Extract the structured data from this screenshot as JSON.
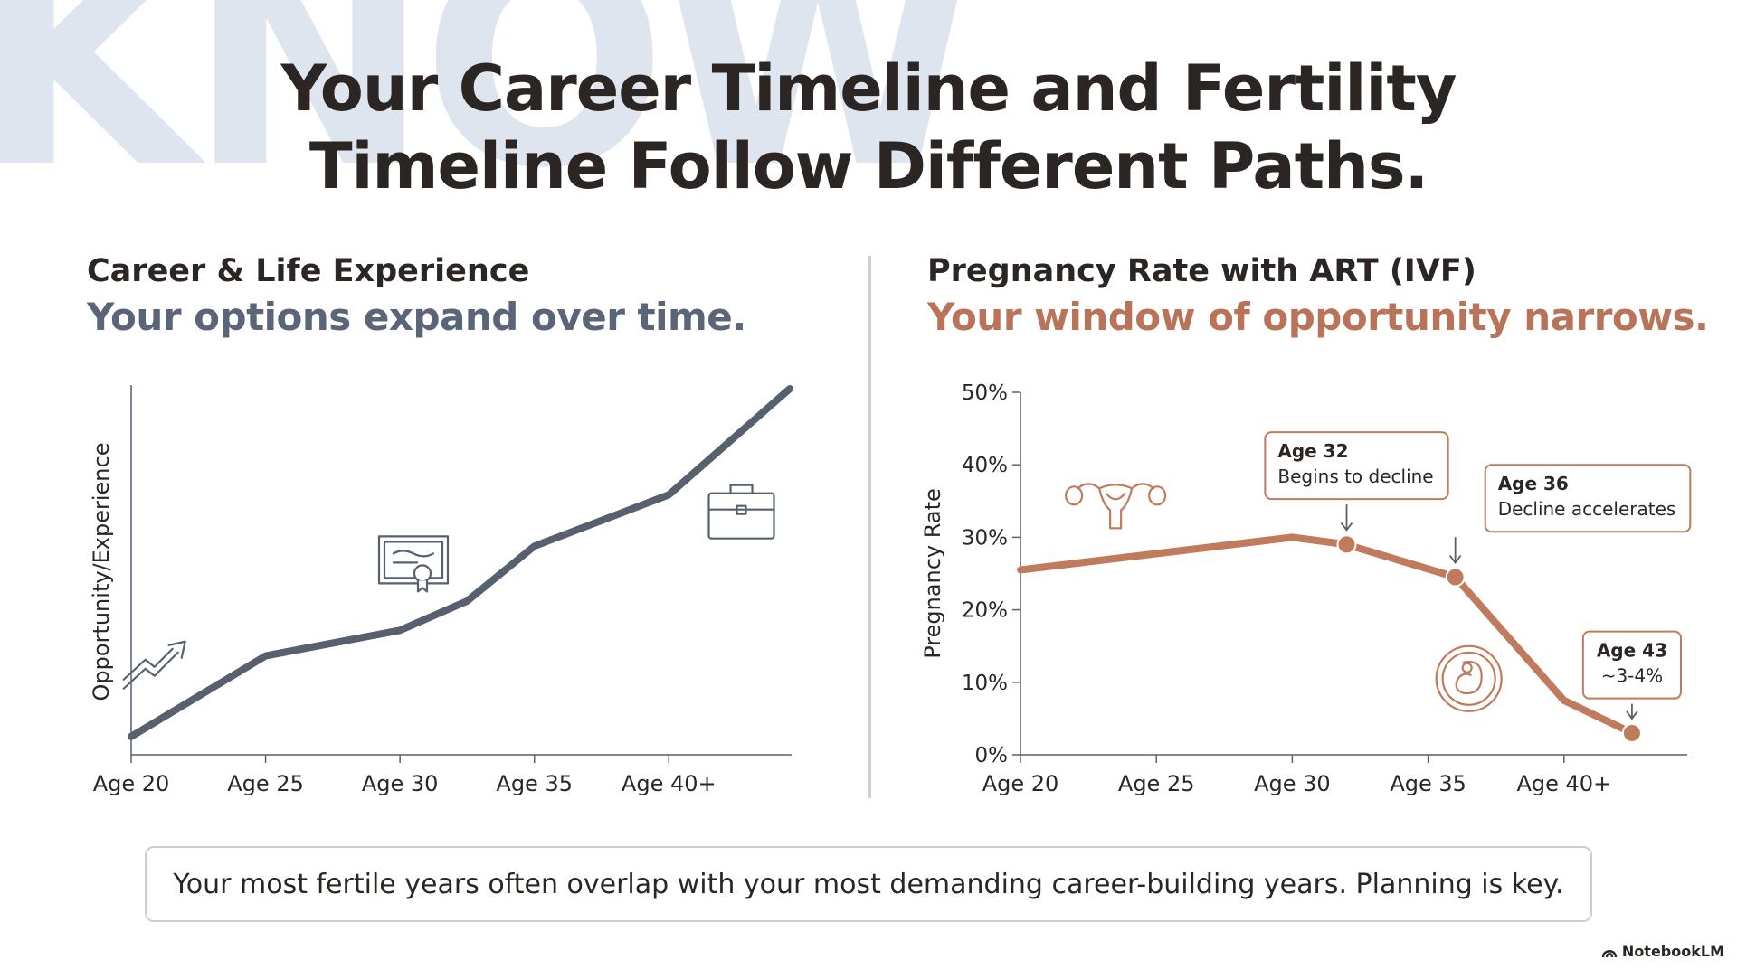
{
  "watermark": "KNOW",
  "title": {
    "line1": "Your Career Timeline and Fertility",
    "line2": "Timeline Follow Different Paths."
  },
  "left_panel": {
    "title": "Career & Life Experience",
    "subtitle": "Your options expand over time.",
    "subtitle_color": "#5b6579"
  },
  "right_panel": {
    "title": "Pregnancy Rate with ART (IVF)",
    "subtitle": "Your window of opportunity narrows.",
    "subtitle_color": "#b97358"
  },
  "footer": {
    "text": "Your most fertile years often overlap with your most demanding career-building years. Planning is key."
  },
  "brand": {
    "label": "NotebookLM",
    "icon": "notebooklm-logo-icon"
  },
  "chart_data": [
    {
      "type": "line",
      "ylabel": "Opportunity/Experience",
      "x_ticks": [
        20,
        25,
        30,
        35,
        40
      ],
      "x_tick_labels": [
        "Age 20",
        "Age 25",
        "Age 30",
        "Age 35",
        "Age 40+"
      ],
      "xlim": [
        20,
        44.5
      ],
      "ylim": [
        0,
        100
      ],
      "color": "#56606f",
      "points": [
        {
          "x": 20,
          "y": 5
        },
        {
          "x": 25,
          "y": 27
        },
        {
          "x": 30,
          "y": 34
        },
        {
          "x": 32.5,
          "y": 42
        },
        {
          "x": 35,
          "y": 57
        },
        {
          "x": 40,
          "y": 71
        },
        {
          "x": 44.5,
          "y": 100
        }
      ],
      "icons": [
        {
          "name": "trend-up-arrow-icon",
          "x": 21,
          "y": 25
        },
        {
          "name": "certificate-icon",
          "x": 30.5,
          "y": 53
        },
        {
          "name": "briefcase-icon",
          "x": 42.7,
          "y": 66
        }
      ]
    },
    {
      "type": "line",
      "ylabel": "Pregnancy Rate",
      "x_ticks": [
        20,
        25,
        30,
        35,
        40
      ],
      "x_tick_labels": [
        "Age 20",
        "Age 25",
        "Age 30",
        "Age 35",
        "Age 40+"
      ],
      "y_ticks": [
        0,
        10,
        20,
        30,
        40,
        50
      ],
      "y_tick_labels": [
        "0%",
        "10%",
        "20%",
        "30%",
        "40%",
        "50%"
      ],
      "xlim": [
        20,
        44.5
      ],
      "ylim": [
        0,
        50
      ],
      "color": "#c07a5c",
      "points": [
        {
          "x": 20,
          "y": 25.5
        },
        {
          "x": 30,
          "y": 30
        },
        {
          "x": 32,
          "y": 29
        },
        {
          "x": 36,
          "y": 24.5
        },
        {
          "x": 40,
          "y": 7.5
        },
        {
          "x": 42.5,
          "y": 3
        }
      ],
      "markers": [
        {
          "x": 32,
          "y": 29
        },
        {
          "x": 36,
          "y": 24.5
        },
        {
          "x": 42.5,
          "y": 3
        }
      ],
      "annotations": [
        {
          "title": "Age 32",
          "text": "Begins to decline",
          "x": 32,
          "y": 29,
          "box_x": 29,
          "box_y": 44.5
        },
        {
          "title": "Age 36",
          "text": "Decline accelerates",
          "x": 36,
          "y": 24.5,
          "box_x": 37.1,
          "box_y": 40
        },
        {
          "title": "Age 43",
          "text": "~3-4%",
          "x": 42.5,
          "y": 3,
          "box_x": 42.5,
          "box_y": 17
        }
      ],
      "icons": [
        {
          "name": "uterus-icon",
          "x": 23.5,
          "y": 35
        },
        {
          "name": "embryo-icon",
          "x": 36.5,
          "y": 10.5
        }
      ]
    }
  ]
}
